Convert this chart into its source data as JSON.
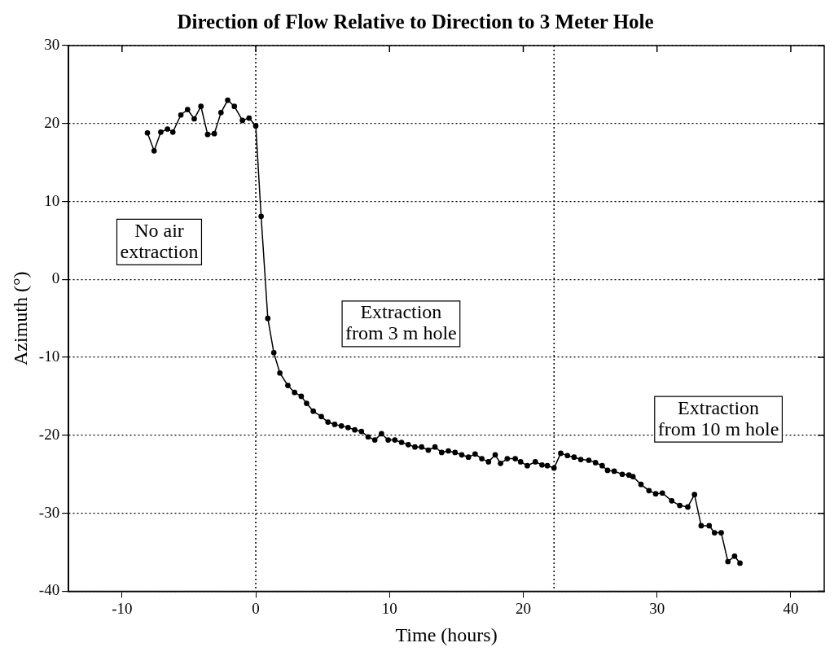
{
  "chart_data": {
    "type": "line",
    "title": "Direction of Flow Relative to Direction to 3 Meter Hole",
    "xlabel": "Time (hours)",
    "ylabel": "Azimuth (°)",
    "x": [
      -8.1,
      -7.6,
      -7.1,
      -6.6,
      -6.2,
      -5.6,
      -5.1,
      -4.6,
      -4.1,
      -3.6,
      -3.1,
      -2.6,
      -2.1,
      -1.6,
      -1.0,
      -0.5,
      0,
      0.4,
      0.9,
      1.35,
      1.8,
      2.4,
      2.9,
      3.4,
      3.8,
      4.3,
      4.9,
      5.4,
      5.9,
      6.4,
      6.9,
      7.4,
      7.9,
      8.4,
      8.9,
      9.4,
      9.9,
      10.4,
      10.9,
      11.4,
      11.9,
      12.4,
      12.9,
      13.4,
      13.9,
      14.4,
      14.9,
      15.4,
      15.9,
      16.4,
      16.9,
      17.4,
      17.9,
      18.3,
      18.8,
      19.4,
      19.8,
      20.3,
      20.9,
      21.4,
      21.8,
      22.3,
      22.8,
      23.3,
      23.8,
      24.3,
      24.9,
      25.4,
      25.9,
      26.3,
      26.8,
      27.4,
      27.9,
      28.2,
      28.8,
      29.4,
      29.9,
      30.4,
      31.1,
      31.7,
      32.3,
      32.8,
      33.3,
      33.9,
      34.3,
      34.8,
      35.3,
      35.8,
      36.2
    ],
    "series": [
      {
        "color": "#000000",
        "values": [
          18.8,
          16.5,
          18.9,
          19.3,
          18.9,
          21.1,
          21.8,
          20.6,
          22.2,
          18.6,
          18.7,
          21.4,
          23.0,
          22.2,
          20.4,
          20.7,
          19.7,
          8.1,
          -5.0,
          -9.4,
          -12.0,
          -13.6,
          -14.5,
          -15.0,
          -15.9,
          -16.9,
          -17.6,
          -18.3,
          -18.6,
          -18.8,
          -19.0,
          -19.3,
          -19.5,
          -20.2,
          -20.6,
          -19.8,
          -20.6,
          -20.6,
          -20.9,
          -21.2,
          -21.5,
          -21.5,
          -21.9,
          -21.5,
          -22.2,
          -22.0,
          -22.2,
          -22.5,
          -22.8,
          -22.4,
          -23.0,
          -23.4,
          -22.5,
          -23.6,
          -23.0,
          -23.0,
          -23.4,
          -23.9,
          -23.4,
          -23.8,
          -23.9,
          -24.2,
          -22.3,
          -22.6,
          -22.8,
          -23.1,
          -23.2,
          -23.5,
          -23.9,
          -24.5,
          -24.6,
          -25.0,
          -25.1,
          -25.3,
          -26.3,
          -27.1,
          -27.5,
          -27.4,
          -28.4,
          -29.0,
          -29.2,
          -27.6,
          -31.6,
          -31.6,
          -32.5,
          -32.5,
          -36.2,
          -35.5,
          -36.4
        ]
      }
    ],
    "xlim": [
      -14,
      42.5
    ],
    "xticks": [
      -10,
      0,
      10,
      20,
      30,
      40
    ],
    "ylim": [
      -40,
      30
    ],
    "yticks": [
      -40,
      -30,
      -20,
      -10,
      0,
      10,
      20,
      30
    ],
    "grid": "y",
    "marker": "circle",
    "line_style": "solid",
    "legend": false,
    "ref_lines": [
      {
        "axis": "x",
        "value": 0,
        "line_style": "dotted"
      },
      {
        "axis": "x",
        "value": 22.3,
        "line_style": "dotted"
      }
    ],
    "annotations": [
      "No air\nextraction",
      "Extraction\nfrom 3 m hole",
      "Extraction\nfrom 10 m hole"
    ]
  }
}
